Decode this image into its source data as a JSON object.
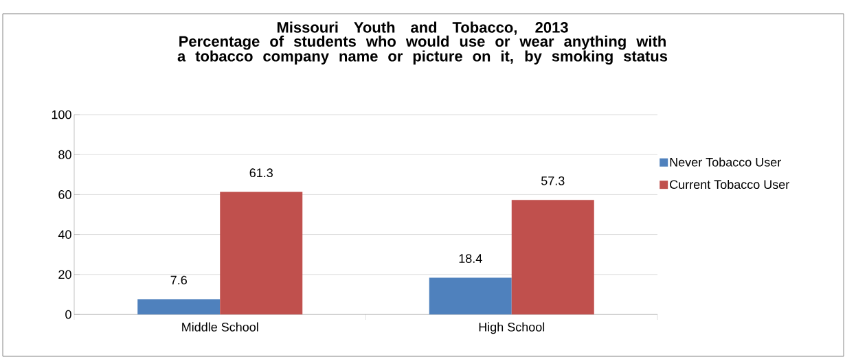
{
  "chart_data": {
    "type": "bar",
    "title": "Missouri Youth and Tobacco, 2013",
    "subtitle": "Percentage of students who would use or wear anything with a tobacco company name or picture on it, by smoking status",
    "categories": [
      "Middle School",
      "High School"
    ],
    "series": [
      {
        "name": "Never Tobacco User",
        "color": "#4f81bd",
        "values": [
          7.6,
          18.4
        ]
      },
      {
        "name": "Current Tobacco User",
        "color": "#c0504d",
        "values": [
          61.3,
          57.3
        ]
      }
    ],
    "ylim": [
      0,
      100
    ],
    "yticks": [
      0,
      20,
      40,
      60,
      80,
      100
    ],
    "grid": "y",
    "legend": "right",
    "data_labels": true
  }
}
